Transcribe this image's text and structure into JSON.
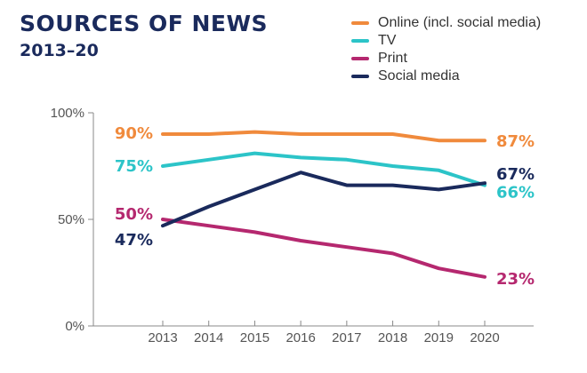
{
  "title": {
    "line1": "SOURCES OF NEWS",
    "line2": "2013–20"
  },
  "chart_data": {
    "type": "line",
    "title": "SOURCES OF NEWS 2013–20",
    "xlabel": "",
    "ylabel": "",
    "x": [
      2013,
      2014,
      2015,
      2016,
      2017,
      2018,
      2019,
      2020
    ],
    "x_tick_labels": [
      "2013",
      "2014",
      "2015",
      "2016",
      "2017",
      "2018",
      "2019",
      "2020"
    ],
    "ylim": [
      0,
      100
    ],
    "y_ticks": [
      0,
      50,
      100
    ],
    "y_tick_labels": [
      "0%",
      "50%",
      "100%"
    ],
    "legend_position": "top-right",
    "series": [
      {
        "name": "Online (incl. social media)",
        "color": "#f08a3c",
        "values": [
          90,
          90,
          91,
          90,
          90,
          90,
          87,
          87
        ],
        "start_label": "90%",
        "end_label": "87%"
      },
      {
        "name": "TV",
        "color": "#2cc4c8",
        "values": [
          75,
          78,
          81,
          79,
          78,
          75,
          73,
          66
        ],
        "start_label": "75%",
        "end_label": "66%"
      },
      {
        "name": "Print",
        "color": "#b5286f",
        "values": [
          50,
          47,
          44,
          40,
          37,
          34,
          27,
          23
        ],
        "start_label": "50%",
        "end_label": "23%"
      },
      {
        "name": "Social media",
        "color": "#1a2a5c",
        "values": [
          47,
          56,
          64,
          72,
          66,
          66,
          64,
          67
        ],
        "start_label": "47%",
        "end_label": "67%"
      }
    ]
  }
}
